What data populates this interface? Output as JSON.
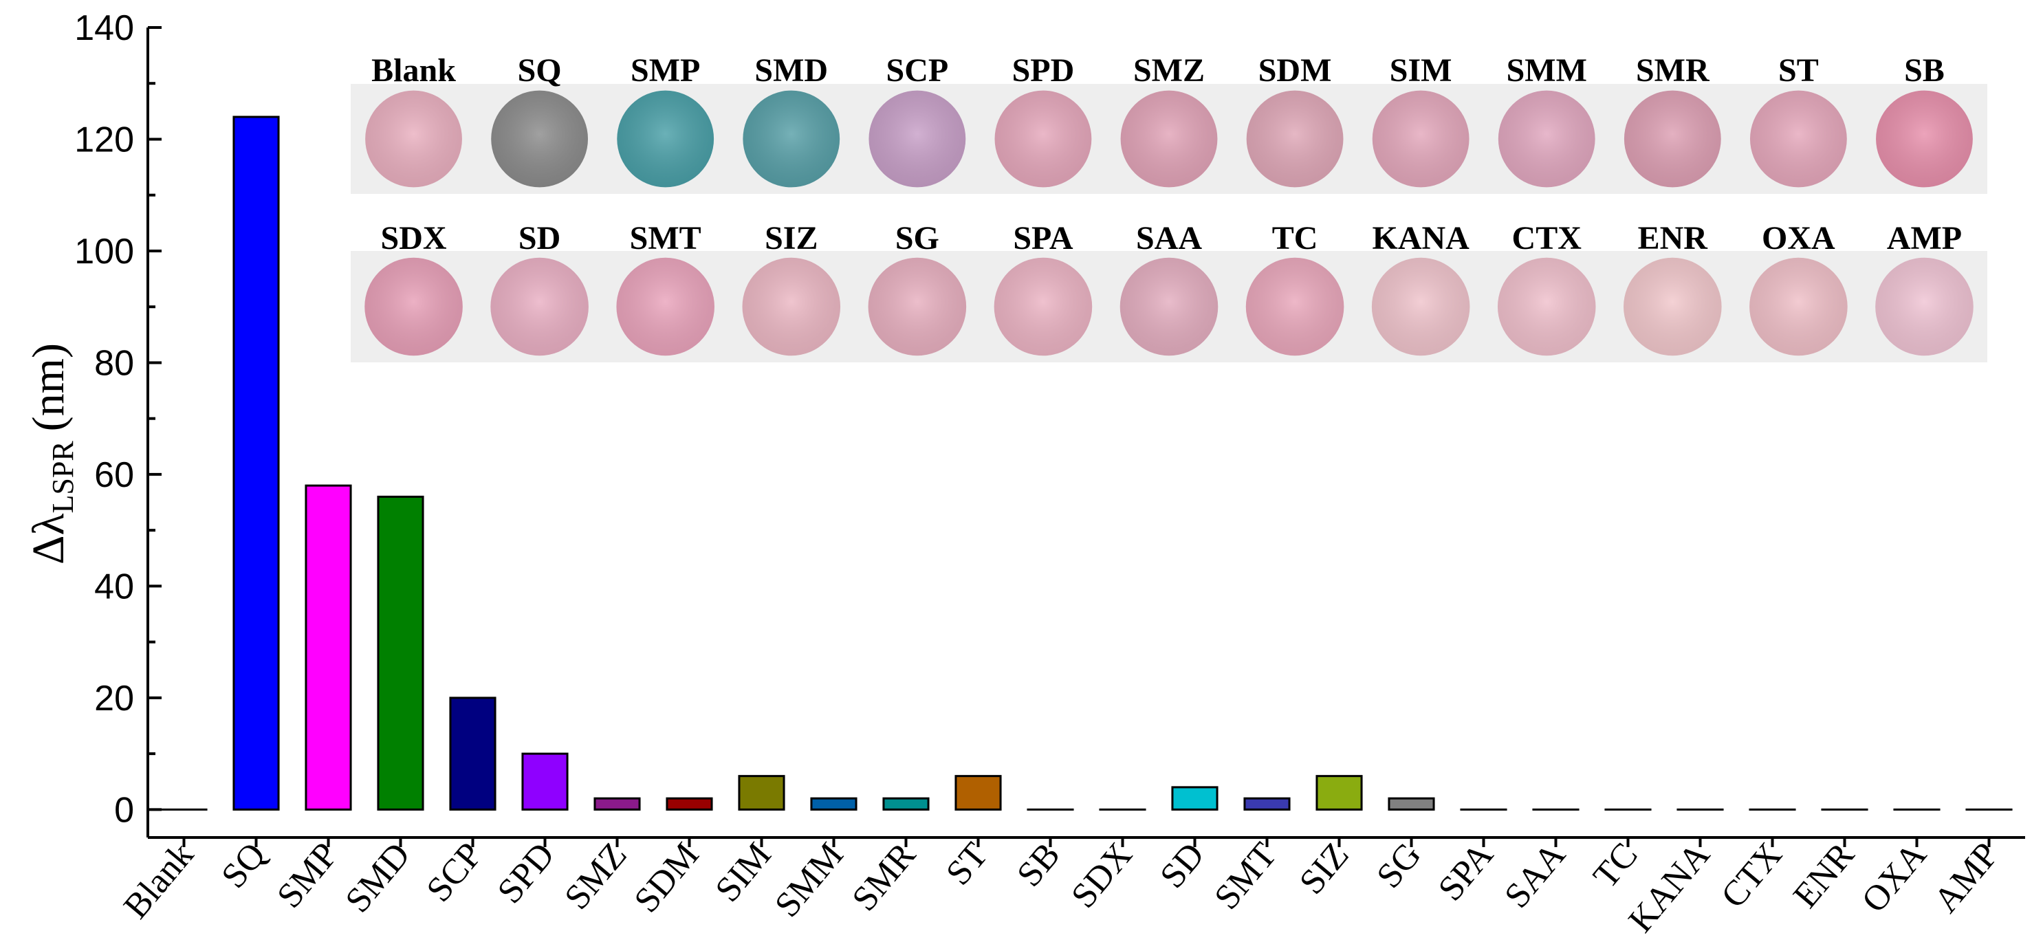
{
  "chart_data": {
    "type": "bar",
    "title": "",
    "xlabel": "",
    "ylabel": "Δλ",
    "ylabel_subscript": "LSPR",
    "ylabel_unit": "(nm)",
    "ylim": [
      -5,
      140
    ],
    "yticks": [
      "0",
      "20",
      "40",
      "60",
      "80",
      "100",
      "120",
      "140"
    ],
    "categories": [
      "Blank",
      "SQ",
      "SMP",
      "SMD",
      "SCP",
      "SPD",
      "SMZ",
      "SDM",
      "SIM",
      "SMM",
      "SMR",
      "ST",
      "SB",
      "SDX",
      "SD",
      "SMT",
      "SIZ",
      "SG",
      "SPA",
      "SAA",
      "TC",
      "KANA",
      "CTX",
      "ENR",
      "OXA",
      "AMP"
    ],
    "values": [
      0,
      124,
      58,
      56,
      20,
      10,
      2,
      2,
      6,
      2,
      2,
      6,
      0,
      0,
      4,
      2,
      6,
      2,
      0,
      0,
      0,
      0,
      0,
      0,
      0,
      0
    ],
    "colors": [
      "#ff0000",
      "#0000ff",
      "#ff00ff",
      "#008000",
      "#000080",
      "#8f00ff",
      "#8b1a8b",
      "#990000",
      "#7a7a00",
      "#0060a8",
      "#009090",
      "#b06000",
      "#00cc44",
      "#e0207a",
      "#00c0d0",
      "#3a3ab0",
      "#8aac10",
      "#808080",
      "#a86060",
      "#3a9060",
      "#00a8d8",
      "#006098",
      "#000000",
      "#ff0000",
      "#0000ff",
      "#ff00ff"
    ]
  },
  "inset": {
    "row1_labels": [
      "Blank",
      "SQ",
      "SMP",
      "SMD",
      "SCP",
      "SPD",
      "SMZ",
      "SDM",
      "SIM",
      "SMM",
      "SMR",
      "ST",
      "SB"
    ],
    "row1_colors": [
      "#eab0c0",
      "#8c8c8c",
      "#4aa0a8",
      "#58a0a8",
      "#c8a0c8",
      "#e6a8bc",
      "#e2a4b8",
      "#e0a8b8",
      "#e4a8bc",
      "#e2a8c0",
      "#dea0b4",
      "#e6a8bc",
      "#e890ac"
    ],
    "row2_labels": [
      "SDX",
      "SD",
      "SMT",
      "SIZ",
      "SG",
      "SPA",
      "SAA",
      "TC",
      "KANA",
      "CTX",
      "ENR",
      "OXA",
      "AMP"
    ],
    "row2_colors": [
      "#e8a0b8",
      "#eab0c4",
      "#eaa4bc",
      "#ecb8c4",
      "#e8b0c0",
      "#ecb4c4",
      "#e4aec0",
      "#eaa8bc",
      "#f0c4cc",
      "#f0c0cc",
      "#f2c8cc",
      "#f0c0c8",
      "#f0c4d4"
    ]
  }
}
